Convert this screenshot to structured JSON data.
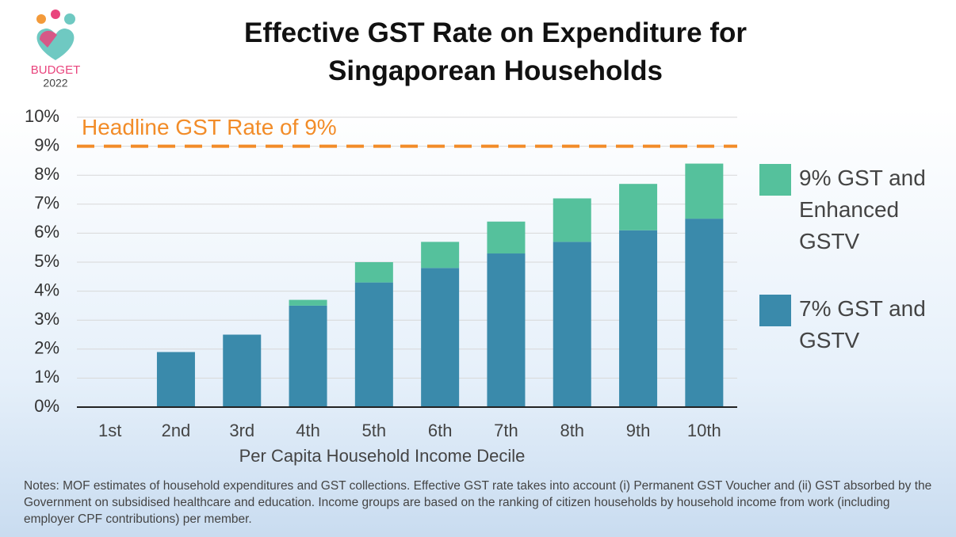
{
  "logo": {
    "line1": "BUDGET",
    "line2": "2022"
  },
  "chart_data": {
    "type": "stacked_bar",
    "title": "Effective GST Rate on Expenditure for Singaporean Households",
    "x_label": "Per Capita Household Income Decile",
    "categories": [
      "1st",
      "2nd",
      "3rd",
      "4th",
      "5th",
      "6th",
      "7th",
      "8th",
      "9th",
      "10th"
    ],
    "series": [
      {
        "name": "7% GST and GSTV",
        "color": "#3a8aab",
        "values": [
          0,
          1.9,
          2.5,
          3.5,
          4.3,
          4.8,
          5.3,
          5.7,
          6.1,
          6.5
        ]
      },
      {
        "name": "9% GST and Enhanced GSTV",
        "color": "#55c19c",
        "values": [
          0,
          0,
          0,
          0.2,
          0.7,
          0.9,
          1.1,
          1.5,
          1.6,
          1.9
        ]
      }
    ],
    "ylim": [
      0,
      10
    ],
    "yticks": [
      {
        "value": 0,
        "label": "0%"
      },
      {
        "value": 1,
        "label": "1%"
      },
      {
        "value": 2,
        "label": "2%"
      },
      {
        "value": 3,
        "label": "3%"
      },
      {
        "value": 4,
        "label": "4%"
      },
      {
        "value": 5,
        "label": "5%"
      },
      {
        "value": 6,
        "label": "6%"
      },
      {
        "value": 7,
        "label": "7%"
      },
      {
        "value": 8,
        "label": "8%"
      },
      {
        "value": 9,
        "label": "9%"
      },
      {
        "value": 10,
        "label": "10%"
      }
    ],
    "grid": true,
    "reference_line": {
      "value": 9,
      "label": "Headline GST Rate of 9%",
      "color": "#f28c28"
    },
    "legend_position": "right"
  },
  "notes": "Notes: MOF estimates of household expenditures and GST collections. Effective GST rate takes into account (i) Permanent GST Voucher and (ii) GST absorbed by the Government on subsidised healthcare and education. Income groups are based on the ranking of citizen households by household income from work (including employer CPF contributions) per member."
}
